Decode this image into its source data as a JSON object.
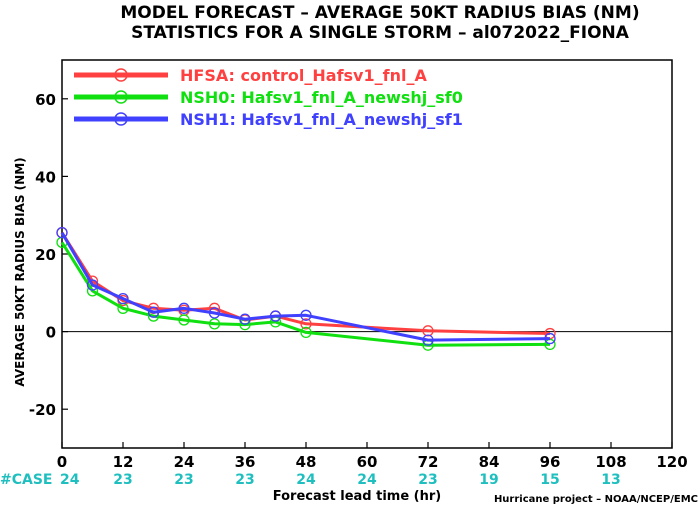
{
  "chart_data": {
    "type": "line",
    "title": "MODEL FORECAST – AVERAGE 50KT RADIUS BIAS (NM)",
    "subtitle": "STATISTICS FOR A SINGLE STORM – al072022_FIONA",
    "xlabel": "Forecast lead time (hr)",
    "ylabel": "AVERAGE 50KT RADIUS BIAS (NM)",
    "xlim": [
      0,
      120
    ],
    "ylim": [
      -30,
      70
    ],
    "xticks": [
      0,
      12,
      24,
      36,
      48,
      60,
      72,
      84,
      96,
      108,
      120
    ],
    "yticks": [
      -20,
      0,
      20,
      40,
      60
    ],
    "zero_line": true,
    "legend_position": "top-left",
    "series": [
      {
        "name": "HFSA: control_Hafsv1_fnl_A",
        "color": "#ff4040",
        "x": [
          0,
          6,
          12,
          18,
          24,
          30,
          36,
          42,
          48,
          72,
          96
        ],
        "y": [
          25.5,
          13,
          8,
          6,
          5.5,
          6,
          3,
          4,
          2,
          0.2,
          -0.5
        ]
      },
      {
        "name": "NSH0: Hafsv1_fnl_A_newshj_sf0",
        "color": "#10e010",
        "x": [
          0,
          6,
          12,
          18,
          24,
          30,
          36,
          42,
          48,
          72,
          96
        ],
        "y": [
          23,
          10.5,
          6,
          4,
          3,
          2,
          1.8,
          2.5,
          -0.2,
          -3.5,
          -3.3
        ]
      },
      {
        "name": "NSH1: Hafsv1_fnl_A_newshj_sf1",
        "color": "#4040ff",
        "x": [
          0,
          6,
          12,
          18,
          24,
          30,
          36,
          42,
          48,
          72,
          96
        ],
        "y": [
          25.5,
          12,
          8.5,
          5,
          6,
          4.8,
          3.2,
          4,
          4.2,
          -2.2,
          -1.8
        ]
      }
    ],
    "case_label": "#CASE",
    "case_counts": [
      {
        "x": 0,
        "label": "24"
      },
      {
        "x": 12,
        "label": "23"
      },
      {
        "x": 24,
        "label": "23"
      },
      {
        "x": 36,
        "label": "23"
      },
      {
        "x": 48,
        "label": "24"
      },
      {
        "x": 60,
        "label": "24"
      },
      {
        "x": 72,
        "label": "23"
      },
      {
        "x": 84,
        "label": "19"
      },
      {
        "x": 96,
        "label": "15"
      },
      {
        "x": 108,
        "label": "13"
      }
    ],
    "credit": "Hurricane project – NOAA/NCEP/EMC"
  }
}
